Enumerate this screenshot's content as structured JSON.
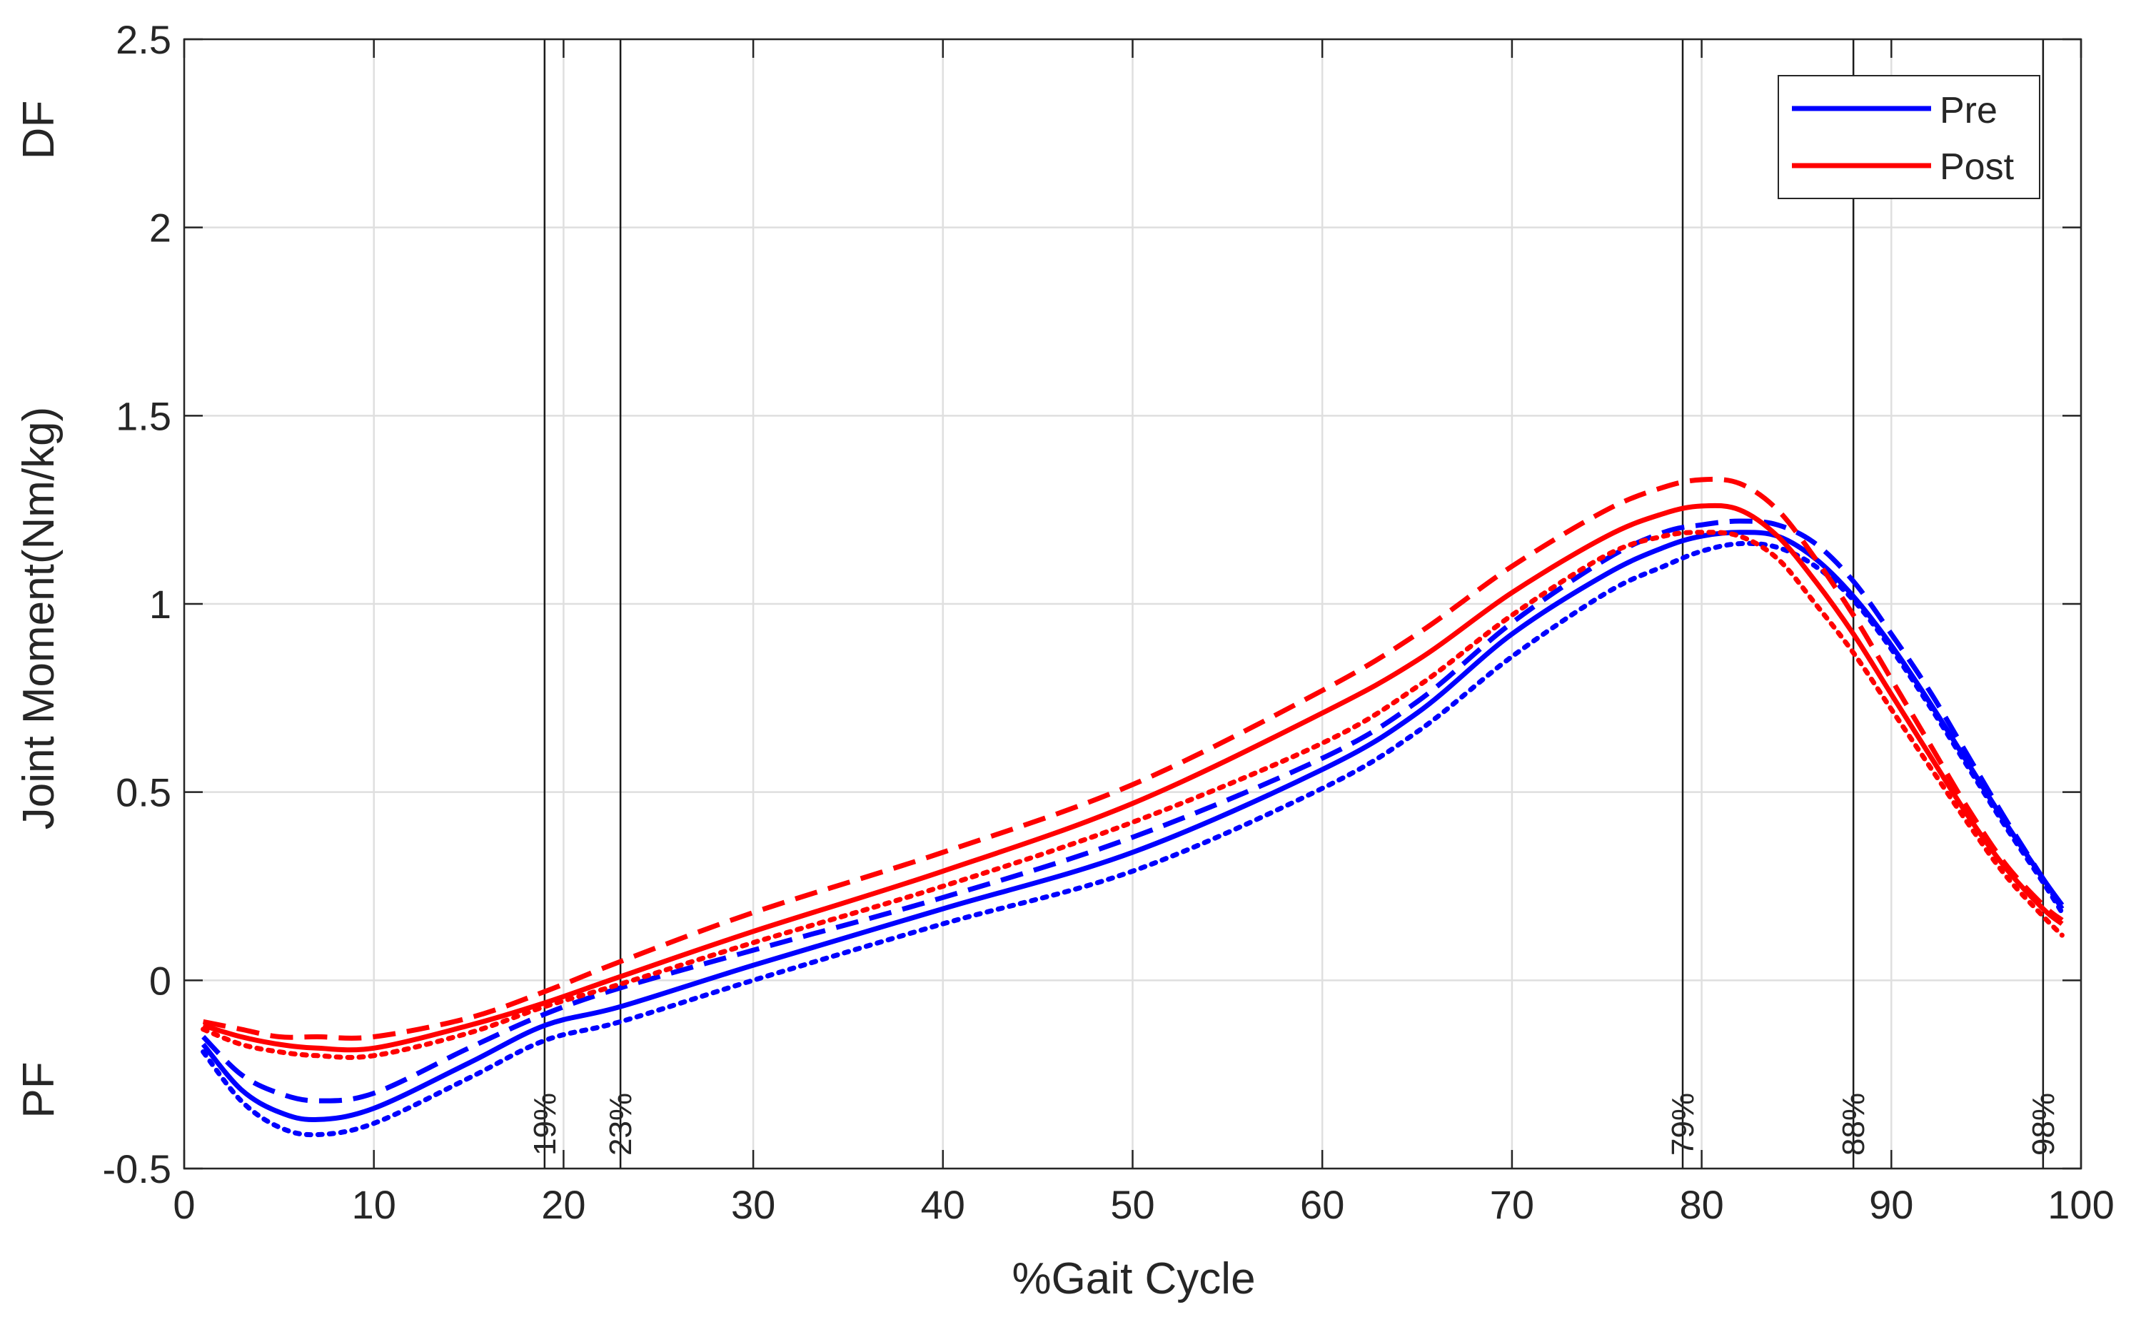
{
  "chart_data": {
    "type": "line",
    "title": "",
    "xlabel": "%Gait Cycle",
    "ylabel": "Joint Moment(Nm/kg)",
    "xlim": [
      0,
      100
    ],
    "ylim": [
      -0.5,
      2.5
    ],
    "xticks": [
      0,
      10,
      20,
      30,
      40,
      50,
      60,
      70,
      80,
      90,
      100
    ],
    "yticks": [
      -0.5,
      0,
      0.5,
      1,
      1.5,
      2,
      2.5
    ],
    "xtick_labels": [
      "0",
      "10",
      "20",
      "30",
      "40",
      "50",
      "60",
      "70",
      "80",
      "90",
      "100"
    ],
    "ytick_labels": [
      "-0.5",
      "0",
      "0.5",
      "1",
      "1.5",
      "2",
      "2.5"
    ],
    "grid": true,
    "side_labels": {
      "top": "DF",
      "bottom": "PF"
    },
    "legend": {
      "position": "top-right",
      "entries": [
        {
          "name": "Pre",
          "color": "#0000ff"
        },
        {
          "name": "Post",
          "color": "#ff0000"
        }
      ]
    },
    "event_lines": [
      {
        "x": 19,
        "label": "19%"
      },
      {
        "x": 23,
        "label": "23%"
      },
      {
        "x": 79,
        "label": "79%"
      },
      {
        "x": 88,
        "label": "88%"
      },
      {
        "x": 98,
        "label": "98%"
      }
    ],
    "x": [
      1,
      3,
      5,
      7,
      10,
      15,
      19,
      23,
      30,
      40,
      50,
      60,
      65,
      70,
      75,
      78,
      80,
      82,
      84,
      86,
      88,
      90,
      92,
      94,
      96,
      98,
      99
    ],
    "series": [
      {
        "name": "Pre",
        "style": "solid",
        "color": "#0000ff",
        "values": [
          -0.17,
          -0.29,
          -0.35,
          -0.37,
          -0.34,
          -0.22,
          -0.12,
          -0.07,
          0.04,
          0.19,
          0.34,
          0.56,
          0.71,
          0.92,
          1.08,
          1.15,
          1.18,
          1.19,
          1.18,
          1.12,
          1.02,
          0.89,
          0.74,
          0.58,
          0.42,
          0.27,
          0.2
        ]
      },
      {
        "name": "Pre (dashed)",
        "style": "dashed",
        "color": "#0000ff",
        "values": [
          -0.15,
          -0.25,
          -0.3,
          -0.32,
          -0.3,
          -0.18,
          -0.09,
          -0.02,
          0.08,
          0.22,
          0.38,
          0.59,
          0.74,
          0.95,
          1.12,
          1.19,
          1.21,
          1.22,
          1.21,
          1.16,
          1.06,
          0.92,
          0.77,
          0.6,
          0.43,
          0.27,
          0.19
        ]
      },
      {
        "name": "Pre (dotted)",
        "style": "dotted",
        "color": "#0000ff",
        "values": [
          -0.19,
          -0.32,
          -0.39,
          -0.41,
          -0.38,
          -0.26,
          -0.16,
          -0.11,
          0.0,
          0.15,
          0.29,
          0.51,
          0.66,
          0.86,
          1.03,
          1.1,
          1.14,
          1.16,
          1.15,
          1.1,
          1.01,
          0.88,
          0.73,
          0.57,
          0.41,
          0.26,
          0.18
        ]
      },
      {
        "name": "Post",
        "style": "solid",
        "color": "#ff0000",
        "values": [
          -0.12,
          -0.15,
          -0.17,
          -0.18,
          -0.18,
          -0.12,
          -0.06,
          0.01,
          0.13,
          0.29,
          0.47,
          0.71,
          0.85,
          1.03,
          1.18,
          1.24,
          1.26,
          1.25,
          1.18,
          1.06,
          0.92,
          0.76,
          0.6,
          0.44,
          0.3,
          0.19,
          0.15
        ]
      },
      {
        "name": "Post (dashed)",
        "style": "dashed",
        "color": "#ff0000",
        "values": [
          -0.11,
          -0.13,
          -0.15,
          -0.15,
          -0.15,
          -0.1,
          -0.03,
          0.05,
          0.18,
          0.34,
          0.52,
          0.77,
          0.92,
          1.1,
          1.25,
          1.31,
          1.33,
          1.32,
          1.25,
          1.12,
          0.97,
          0.8,
          0.63,
          0.46,
          0.31,
          0.2,
          0.16
        ]
      },
      {
        "name": "Post (dotted)",
        "style": "dotted",
        "color": "#ff0000",
        "values": [
          -0.13,
          -0.17,
          -0.19,
          -0.2,
          -0.2,
          -0.14,
          -0.07,
          -0.01,
          0.1,
          0.25,
          0.42,
          0.63,
          0.78,
          0.97,
          1.13,
          1.18,
          1.19,
          1.18,
          1.12,
          1.0,
          0.87,
          0.72,
          0.57,
          0.42,
          0.28,
          0.17,
          0.12
        ]
      }
    ]
  }
}
